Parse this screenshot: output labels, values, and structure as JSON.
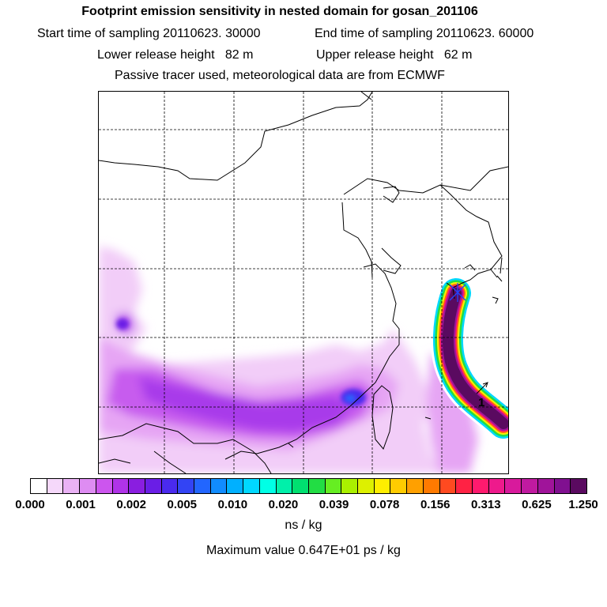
{
  "header": {
    "title": "Footprint emission sensitivity in nested domain for gosan_201106",
    "start_label": "Start time of sampling 20110623. 30000",
    "end_label": "End time of sampling 20110623. 60000",
    "lower_label": "Lower release height   82 m",
    "upper_label": "Upper release height   62 m",
    "info": "Passive tracer used, meteorological data are from ECMWF"
  },
  "map": {
    "marker_label": "1"
  },
  "legend": {
    "ticks": [
      "0.000",
      "0.001",
      "0.002",
      "0.005",
      "0.010",
      "0.020",
      "0.039",
      "0.078",
      "0.156",
      "0.313",
      "0.625",
      "1.250"
    ],
    "colors": [
      "#ffffff",
      "#f5d8fa",
      "#eab2f5",
      "#de8cf2",
      "#cc55ee",
      "#b033e8",
      "#8a1ee0",
      "#6a1ee6",
      "#4a2aee",
      "#3344f4",
      "#2266ff",
      "#118cff",
      "#00b0ff",
      "#00d8ff",
      "#00ffe6",
      "#00f0aa",
      "#00e070",
      "#22dd44",
      "#66ee22",
      "#aaf000",
      "#ddf000",
      "#ffee00",
      "#ffcc00",
      "#ffa000",
      "#ff7a00",
      "#ff4a20",
      "#ff2244",
      "#ff1a6e",
      "#ee1a8c",
      "#d81a9c",
      "#c01aa0",
      "#a0149a",
      "#801090",
      "#5a0a60"
    ],
    "units": "ns / kg"
  },
  "footer": {
    "max_value": "Maximum value  0.647E+01 ps / kg"
  }
}
